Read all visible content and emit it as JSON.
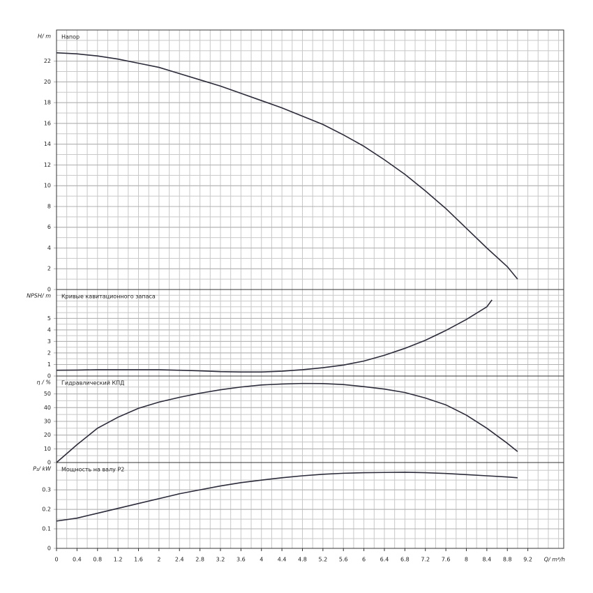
{
  "chart_data": [
    {
      "type": "line",
      "ylabel": "H/ m",
      "title": "Напор",
      "color": "#2b2b3a",
      "x": [
        0,
        0.4,
        0.8,
        1.2,
        1.6,
        2,
        2.4,
        2.8,
        3.2,
        3.6,
        4,
        4.4,
        4.8,
        5.2,
        5.6,
        6,
        6.4,
        6.8,
        7.2,
        7.6,
        8,
        8.4,
        8.8,
        9
      ],
      "values": [
        22.8,
        22.7,
        22.5,
        22.2,
        21.8,
        21.4,
        20.8,
        20.2,
        19.6,
        18.9,
        18.2,
        17.5,
        16.7,
        15.9,
        14.9,
        13.8,
        12.5,
        11.1,
        9.5,
        7.8,
        5.9,
        4.0,
        2.2,
        1.0
      ],
      "xlim": [
        0,
        9.9
      ],
      "ylim": [
        0,
        25
      ],
      "yticks": [
        0,
        2,
        4,
        6,
        8,
        10,
        12,
        14,
        16,
        18,
        20,
        22
      ],
      "grid": true
    },
    {
      "type": "line",
      "ylabel": "NPSH/ m",
      "title": "Кривые кавитационного запаса",
      "color": "#2b2b3a",
      "x": [
        0,
        0.4,
        0.8,
        1.2,
        1.6,
        2,
        2.4,
        2.8,
        3.2,
        3.6,
        4,
        4.4,
        4.8,
        5.2,
        5.6,
        6,
        6.4,
        6.8,
        7.2,
        7.6,
        8,
        8.4,
        8.5
      ],
      "values": [
        0.5,
        0.52,
        0.55,
        0.55,
        0.55,
        0.55,
        0.5,
        0.45,
        0.38,
        0.35,
        0.35,
        0.42,
        0.55,
        0.72,
        0.95,
        1.3,
        1.8,
        2.4,
        3.1,
        3.95,
        4.9,
        6.0,
        6.6
      ],
      "xlim": [
        0,
        9.9
      ],
      "ylim": [
        0,
        7.5
      ],
      "yticks": [
        0,
        1,
        2,
        3,
        4,
        5
      ],
      "grid": true
    },
    {
      "type": "line",
      "ylabel": "η / %",
      "title": "Гидравлический КПД",
      "color": "#2b2b3a",
      "x": [
        0,
        0.4,
        0.8,
        1.2,
        1.6,
        2,
        2.4,
        2.8,
        3.2,
        3.6,
        4,
        4.4,
        4.8,
        5.2,
        5.6,
        6,
        6.4,
        6.8,
        7.2,
        7.6,
        8,
        8.4,
        8.8,
        9
      ],
      "values": [
        0,
        13,
        25,
        33,
        39.5,
        44,
        47.5,
        50.5,
        53,
        55,
        56.5,
        57.2,
        57.6,
        57.5,
        56.8,
        55.3,
        53.5,
        51,
        47,
        42,
        34.5,
        25,
        14,
        8
      ],
      "xlim": [
        0,
        9.9
      ],
      "ylim": [
        0,
        63
      ],
      "yticks": [
        0,
        10,
        20,
        30,
        40,
        50
      ],
      "grid": true
    },
    {
      "type": "line",
      "ylabel": "P₂/ kW",
      "title": "Мощность на валу P2",
      "color": "#2b2b3a",
      "xlabel": "Q/ m³/h",
      "x": [
        0,
        0.4,
        0.8,
        1.2,
        1.6,
        2,
        2.4,
        2.8,
        3.2,
        3.6,
        4,
        4.4,
        4.8,
        5.2,
        5.6,
        6,
        6.4,
        6.8,
        7.2,
        7.6,
        8,
        8.4,
        8.8,
        9
      ],
      "values": [
        0.14,
        0.155,
        0.18,
        0.205,
        0.23,
        0.255,
        0.28,
        0.3,
        0.32,
        0.337,
        0.35,
        0.362,
        0.372,
        0.38,
        0.385,
        0.388,
        0.389,
        0.39,
        0.388,
        0.384,
        0.378,
        0.372,
        0.366,
        0.362
      ],
      "xlim": [
        0,
        9.9
      ],
      "ylim": [
        0,
        0.44
      ],
      "yticks": [
        0,
        0.1,
        0.2,
        0.3
      ],
      "grid": true,
      "xticks": [
        0,
        0.4,
        0.8,
        1.2,
        1.6,
        2,
        2.4,
        2.8,
        3.2,
        3.6,
        4,
        4.4,
        4.8,
        5.2,
        5.6,
        6,
        6.4,
        6.8,
        7.2,
        7.6,
        8,
        8.4,
        8.8,
        9.2
      ]
    }
  ]
}
